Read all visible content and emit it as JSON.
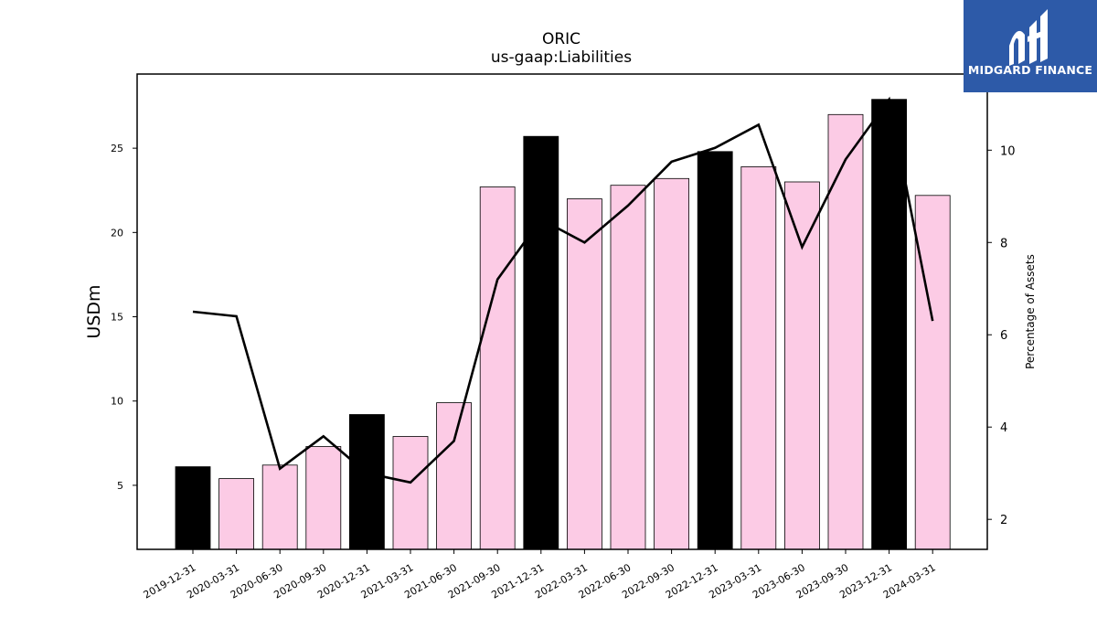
{
  "chart_data": {
    "type": "bar",
    "title": "ORIC",
    "subtitle": "us-gaap:Liabilities",
    "ylabel": "USDm",
    "y2label": "Percentage of Assets",
    "categories": [
      "2019-12-31",
      "2020-03-31",
      "2020-06-30",
      "2020-09-30",
      "2020-12-31",
      "2021-03-31",
      "2021-06-30",
      "2021-09-30",
      "2021-12-31",
      "2022-03-31",
      "2022-06-30",
      "2022-09-30",
      "2022-12-31",
      "2023-03-31",
      "2023-06-30",
      "2023-09-30",
      "2023-12-31",
      "2024-03-31"
    ],
    "series": [
      {
        "type": "bar",
        "axis": "left",
        "values": [
          6.1,
          5.4,
          6.2,
          7.3,
          9.2,
          7.9,
          9.9,
          22.7,
          25.7,
          22.0,
          22.8,
          23.2,
          24.8,
          23.9,
          23.0,
          27.0,
          27.9,
          22.2
        ],
        "year_end_color": "#000000",
        "quarter_color": "#fccbe5"
      },
      {
        "type": "line",
        "axis": "right",
        "values": [
          6.5,
          6.4,
          3.1,
          3.8,
          3.0,
          2.8,
          3.7,
          7.2,
          8.5,
          8.0,
          8.8,
          9.75,
          10.05,
          10.55,
          7.9,
          9.8,
          11.1,
          6.3
        ],
        "color": "#000000"
      }
    ],
    "ylim": [
      1.2,
      29.4
    ],
    "yticks": [
      5,
      10,
      15,
      20,
      25
    ],
    "y2lim": [
      1.35,
      11.65
    ],
    "y2ticks": [
      2,
      4,
      6,
      8,
      10
    ],
    "legend": "none",
    "grid": false
  },
  "logo": {
    "text": "MIDGARD FINANCE",
    "background": "#2d5aa8"
  }
}
